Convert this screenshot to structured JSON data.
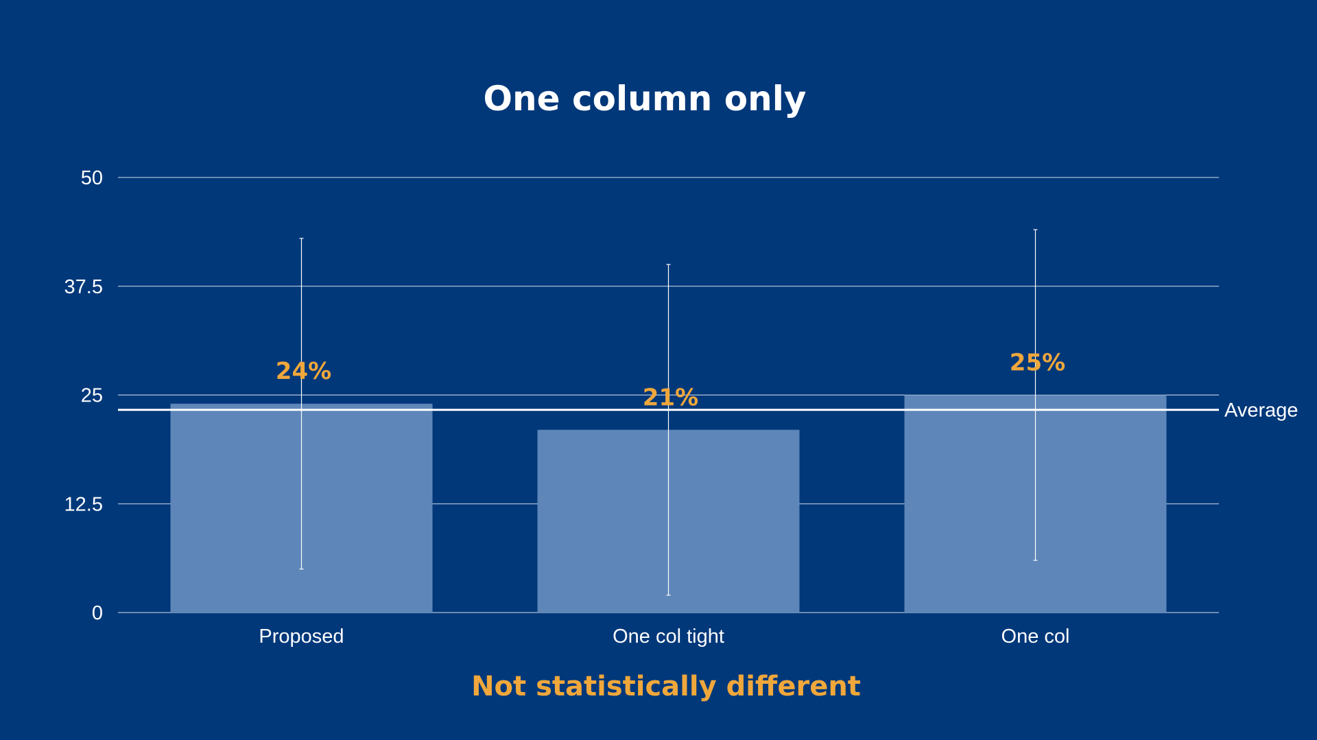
{
  "slide": {
    "title": "One column only",
    "footnote": "Not statistically different"
  },
  "colors": {
    "background": "#00387a",
    "bar": "#5e86b8",
    "grid": "#ffffff",
    "accent": "#f0a73b"
  },
  "chart_data": {
    "type": "bar",
    "title": "One column only",
    "categories": [
      "Proposed",
      "One col tight",
      "One col"
    ],
    "values": [
      24,
      21,
      25
    ],
    "value_labels": [
      "24%",
      "21%",
      "25%"
    ],
    "error_bars": [
      {
        "low": 5,
        "high": 43
      },
      {
        "low": 2,
        "high": 40
      },
      {
        "low": 6,
        "high": 44
      }
    ],
    "reference_line": {
      "label": "Average",
      "value": 23.3
    },
    "yticks": [
      "0",
      "12.5",
      "25",
      "37.5",
      "50"
    ],
    "ylim": [
      0,
      50
    ],
    "grid": true,
    "legend": "none"
  }
}
